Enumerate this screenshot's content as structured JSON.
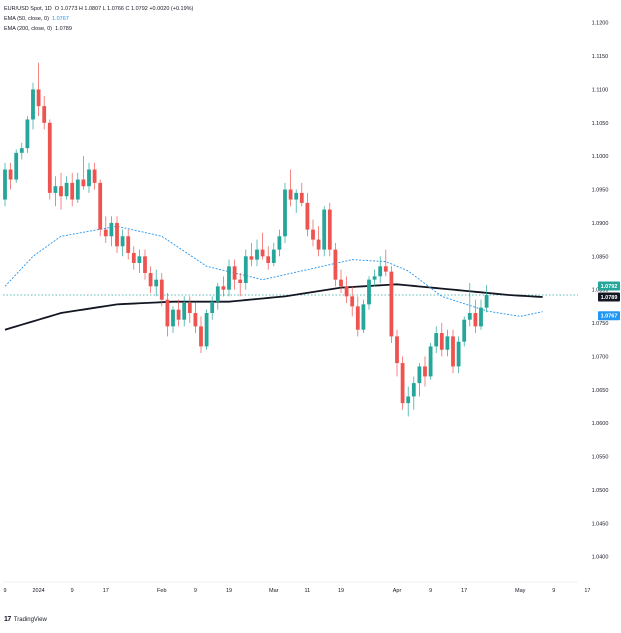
{
  "legend": {
    "symbol_line": "EUR/USD Spot, 1D",
    "ohlc": "O 1.0773  H 1.0807  L 1.0766  C 1.0792  +0.0020 (+0.19%)",
    "ema50_label": "EMA (50, close, 0)",
    "ema50_value": "1.0767",
    "ema200_label": "EMA (200, close, 0)",
    "ema200_value": "1.0789"
  },
  "brand": {
    "logo": "17",
    "name": "TradingView"
  },
  "colors": {
    "up": "#26a69a",
    "down": "#ef5350",
    "ema50": "#2196f3",
    "ema200": "#131722",
    "price_line": "#26a69a"
  },
  "tags": {
    "close": "1.0792",
    "ema200": "1.0789",
    "ema50": "1.0767"
  },
  "chart_data": {
    "type": "candlestick",
    "title": "",
    "y_ticks": [
      "1.1200",
      "1.1150",
      "1.1100",
      "1.1050",
      "1.1000",
      "1.0950",
      "1.0900",
      "1.0850",
      "1.0800",
      "1.0750",
      "1.0700",
      "1.0650",
      "1.0600",
      "1.0550",
      "1.0500",
      "1.0450",
      "1.0400"
    ],
    "ylim": [
      1.0365,
      1.1225
    ],
    "x_ticks": [
      {
        "label": "9",
        "index": 0
      },
      {
        "label": "2024",
        "index": 6
      },
      {
        "label": "9",
        "index": 12
      },
      {
        "label": "17",
        "index": 18
      },
      {
        "label": "Feb",
        "index": 28
      },
      {
        "label": "9",
        "index": 34
      },
      {
        "label": "19",
        "index": 40
      },
      {
        "label": "Mar",
        "index": 48
      },
      {
        "label": "11",
        "index": 54
      },
      {
        "label": "19",
        "index": 60
      },
      {
        "label": "Apr",
        "index": 70
      },
      {
        "label": "9",
        "index": 76
      },
      {
        "label": "17",
        "index": 82
      },
      {
        "label": "May",
        "index": 92
      },
      {
        "label": "9",
        "index": 98
      },
      {
        "label": "17",
        "index": 104
      }
    ],
    "candles": [
      [
        1.0935,
        1.099,
        1.0925,
        1.098
      ],
      [
        1.098,
        1.099,
        1.095,
        1.0965
      ],
      [
        1.0965,
        1.101,
        1.096,
        1.1005
      ],
      [
        1.1005,
        1.102,
        1.0995,
        1.1012
      ],
      [
        1.1012,
        1.106,
        1.1005,
        1.1055
      ],
      [
        1.1055,
        1.111,
        1.104,
        1.11
      ],
      [
        1.11,
        1.114,
        1.106,
        1.1075
      ],
      [
        1.1075,
        1.109,
        1.104,
        1.105
      ],
      [
        1.105,
        1.1055,
        1.0935,
        1.0945
      ],
      [
        1.0945,
        1.097,
        1.0925,
        1.0955
      ],
      [
        1.0955,
        1.0975,
        1.092,
        1.094
      ],
      [
        1.094,
        1.097,
        1.0935,
        1.096
      ],
      [
        1.096,
        1.0975,
        1.0925,
        1.0935
      ],
      [
        1.0935,
        1.0975,
        1.093,
        1.0965
      ],
      [
        1.0965,
        1.1,
        1.095,
        1.0955
      ],
      [
        1.0955,
        1.099,
        1.0945,
        1.098
      ],
      [
        1.098,
        1.099,
        1.095,
        1.096
      ],
      [
        1.096,
        1.0965,
        1.088,
        1.089
      ],
      [
        1.089,
        1.091,
        1.087,
        1.088
      ],
      [
        1.088,
        1.091,
        1.0865,
        1.09
      ],
      [
        1.09,
        1.091,
        1.0855,
        1.0865
      ],
      [
        1.0865,
        1.089,
        1.085,
        1.088
      ],
      [
        1.088,
        1.089,
        1.0845,
        1.0855
      ],
      [
        1.0855,
        1.0865,
        1.083,
        1.084
      ],
      [
        1.084,
        1.086,
        1.0825,
        1.085
      ],
      [
        1.085,
        1.086,
        1.0815,
        1.0825
      ],
      [
        1.0825,
        1.0835,
        1.0795,
        1.0805
      ],
      [
        1.0805,
        1.083,
        1.079,
        1.0815
      ],
      [
        1.0815,
        1.0825,
        1.0775,
        1.0785
      ],
      [
        1.0785,
        1.0795,
        1.073,
        1.0745
      ],
      [
        1.0745,
        1.0775,
        1.0735,
        1.077
      ],
      [
        1.077,
        1.0785,
        1.0745,
        1.0755
      ],
      [
        1.0755,
        1.079,
        1.0745,
        1.078
      ],
      [
        1.078,
        1.079,
        1.075,
        1.0765
      ],
      [
        1.0765,
        1.078,
        1.0735,
        1.0745
      ],
      [
        1.0745,
        1.076,
        1.0705,
        1.0715
      ],
      [
        1.0715,
        1.077,
        1.071,
        1.0765
      ],
      [
        1.0765,
        1.079,
        1.0755,
        1.0782
      ],
      [
        1.0782,
        1.081,
        1.077,
        1.0805
      ],
      [
        1.0805,
        1.082,
        1.079,
        1.08
      ],
      [
        1.08,
        1.0845,
        1.079,
        1.0835
      ],
      [
        1.0835,
        1.0845,
        1.08,
        1.0815
      ],
      [
        1.0815,
        1.0825,
        1.079,
        1.081
      ],
      [
        1.081,
        1.086,
        1.08,
        1.085
      ],
      [
        1.085,
        1.087,
        1.0835,
        1.0845
      ],
      [
        1.0845,
        1.0875,
        1.0835,
        1.086
      ],
      [
        1.086,
        1.0885,
        1.0845,
        1.085
      ],
      [
        1.085,
        1.0865,
        1.083,
        1.084
      ],
      [
        1.084,
        1.087,
        1.0835,
        1.086
      ],
      [
        1.086,
        1.089,
        1.085,
        1.088
      ],
      [
        1.088,
        1.096,
        1.087,
        1.095
      ],
      [
        1.095,
        1.098,
        1.0925,
        1.0935
      ],
      [
        1.0935,
        1.095,
        1.0915,
        1.0945
      ],
      [
        1.0945,
        1.096,
        1.0925,
        1.093
      ],
      [
        1.093,
        1.0945,
        1.088,
        1.089
      ],
      [
        1.089,
        1.0905,
        1.0865,
        1.0875
      ],
      [
        1.0875,
        1.0895,
        1.085,
        1.086
      ],
      [
        1.086,
        1.0925,
        1.085,
        1.092
      ],
      [
        1.092,
        1.093,
        1.085,
        1.086
      ],
      [
        1.086,
        1.087,
        1.0805,
        1.0815
      ],
      [
        1.0815,
        1.083,
        1.0795,
        1.0805
      ],
      [
        1.0805,
        1.082,
        1.078,
        1.079
      ],
      [
        1.079,
        1.0805,
        1.076,
        1.0775
      ],
      [
        1.0775,
        1.079,
        1.073,
        1.074
      ],
      [
        1.074,
        1.0785,
        1.0735,
        1.0778
      ],
      [
        1.0778,
        1.082,
        1.077,
        1.0815
      ],
      [
        1.0815,
        1.083,
        1.0805,
        1.082
      ],
      [
        1.082,
        1.085,
        1.081,
        1.0835
      ],
      [
        1.0835,
        1.086,
        1.082,
        1.0827
      ],
      [
        1.0827,
        1.0835,
        1.072,
        1.073
      ],
      [
        1.073,
        1.074,
        1.067,
        1.069
      ],
      [
        1.069,
        1.07,
        1.062,
        1.063
      ],
      [
        1.063,
        1.0655,
        1.061,
        1.064
      ],
      [
        1.064,
        1.067,
        1.062,
        1.066
      ],
      [
        1.066,
        1.069,
        1.064,
        1.0685
      ],
      [
        1.0685,
        1.07,
        1.0655,
        1.067
      ],
      [
        1.067,
        1.072,
        1.0665,
        1.0715
      ],
      [
        1.0715,
        1.0745,
        1.0705,
        1.0735
      ],
      [
        1.0735,
        1.075,
        1.07,
        1.071
      ],
      [
        1.071,
        1.074,
        1.07,
        1.073
      ],
      [
        1.073,
        1.074,
        1.0675,
        1.0685
      ],
      [
        1.0685,
        1.073,
        1.0675,
        1.0722
      ],
      [
        1.0722,
        1.076,
        1.0715,
        1.0755
      ],
      [
        1.0755,
        1.081,
        1.0745,
        1.0765
      ],
      [
        1.0765,
        1.0785,
        1.0735,
        1.0745
      ],
      [
        1.0745,
        1.0785,
        1.074,
        1.0773
      ],
      [
        1.0773,
        1.0807,
        1.0766,
        1.0792
      ]
    ],
    "ema50": [
      [
        0,
        1.0805
      ],
      [
        5,
        1.085
      ],
      [
        10,
        1.088
      ],
      [
        20,
        1.0895
      ],
      [
        28,
        1.088
      ],
      [
        36,
        1.0835
      ],
      [
        46,
        1.0815
      ],
      [
        54,
        1.083
      ],
      [
        62,
        1.0845
      ],
      [
        68,
        1.0842
      ],
      [
        72,
        1.0828
      ],
      [
        78,
        1.079
      ],
      [
        86,
        1.0768
      ],
      [
        92,
        1.076
      ],
      [
        96,
        1.0767
      ]
    ],
    "ema200": [
      [
        0,
        1.074
      ],
      [
        10,
        1.0765
      ],
      [
        20,
        1.0778
      ],
      [
        30,
        1.0782
      ],
      [
        40,
        1.0782
      ],
      [
        50,
        1.079
      ],
      [
        60,
        1.0803
      ],
      [
        70,
        1.0808
      ],
      [
        80,
        1.08
      ],
      [
        90,
        1.0792
      ],
      [
        96,
        1.0789
      ]
    ],
    "last_price": 1.0792
  }
}
